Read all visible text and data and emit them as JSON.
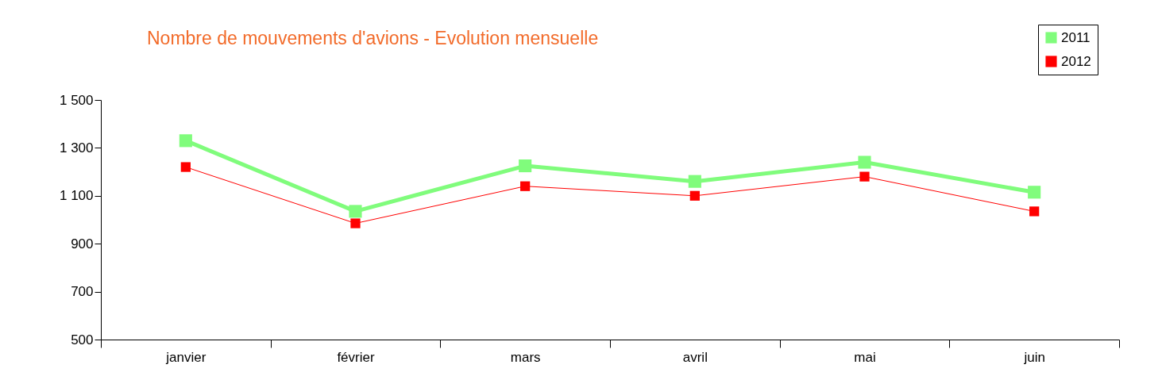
{
  "chart_data": {
    "type": "line",
    "title": "Nombre de mouvements d'avions - Evolution mensuelle",
    "categories": [
      "janvier",
      "février",
      "mars",
      "avril",
      "mai",
      "juin"
    ],
    "series": [
      {
        "name": "2011",
        "color": "#80fc7c",
        "values": [
          1330,
          1035,
          1225,
          1160,
          1240,
          1115
        ]
      },
      {
        "name": "2012",
        "color": "#ff0000",
        "values": [
          1220,
          985,
          1140,
          1100,
          1180,
          1035
        ]
      }
    ],
    "ylim": [
      500,
      1500
    ],
    "yticks": [
      500,
      700,
      900,
      {
        "value": 1100,
        "label": "1 100"
      },
      {
        "value": 1300,
        "label": "1 300"
      },
      {
        "value": 1500,
        "label": "1 500"
      }
    ],
    "grid": false,
    "legend": "top right",
    "marker": "square",
    "line_style": "solid"
  }
}
